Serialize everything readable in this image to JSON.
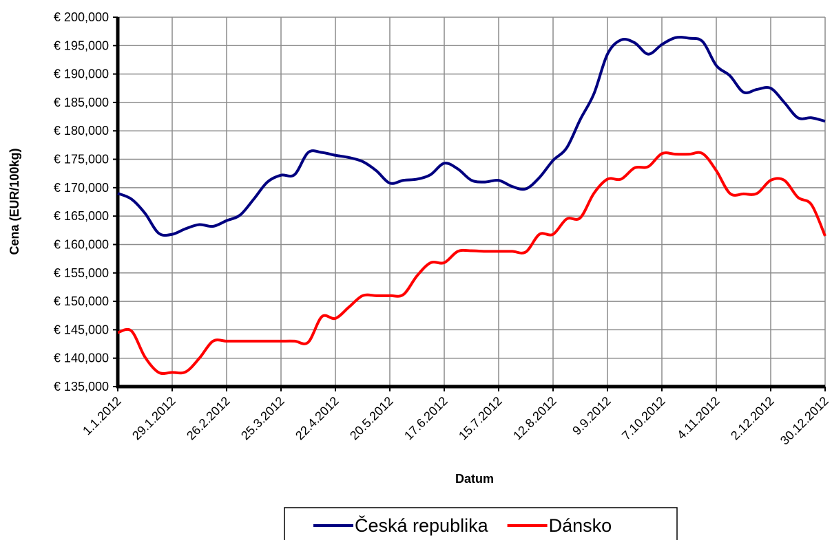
{
  "chart_data": {
    "type": "line",
    "xlabel": "Datum",
    "ylabel": "Cena (EUR/100kg)",
    "categories": [
      "1.1.2012",
      null,
      null,
      null,
      "29.1.2012",
      null,
      null,
      null,
      "26.2.2012",
      null,
      null,
      null,
      "25.3.2012",
      null,
      null,
      null,
      "22.4.2012",
      null,
      null,
      null,
      "20.5.2012",
      null,
      null,
      null,
      "17.6.2012",
      null,
      null,
      null,
      "15.7.2012",
      null,
      null,
      null,
      "12.8.2012",
      null,
      null,
      null,
      "9.9.2012",
      null,
      null,
      null,
      "7.10.2012",
      null,
      null,
      null,
      "4.11.2012",
      null,
      null,
      null,
      "2.12.2012",
      null,
      null,
      null,
      "30.12.2012"
    ],
    "series": [
      {
        "name": "Česká republika",
        "color": "#000080",
        "values": [
          169000,
          168000,
          165500,
          162000,
          161800,
          162800,
          163500,
          163200,
          164200,
          165200,
          168000,
          171000,
          172200,
          172300,
          176200,
          176200,
          175700,
          175300,
          174600,
          173000,
          170800,
          171300,
          171500,
          172300,
          174300,
          173300,
          171300,
          171000,
          171300,
          170200,
          169800,
          171800,
          174800,
          177000,
          182000,
          186500,
          193500,
          196000,
          195500,
          193500,
          195200,
          196400,
          196300,
          195700,
          191500,
          189700,
          186800,
          187300,
          187500,
          185000,
          182300,
          182300,
          181700
        ]
      },
      {
        "name": "Dánsko",
        "color": "#ff0000",
        "values": [
          144500,
          144800,
          140200,
          137500,
          137500,
          137600,
          140000,
          143000,
          143000,
          143000,
          143000,
          143000,
          143000,
          143000,
          142800,
          147300,
          147000,
          149000,
          151000,
          151000,
          151000,
          151200,
          154500,
          156800,
          156800,
          158800,
          158900,
          158800,
          158800,
          158800,
          158700,
          161800,
          161800,
          164500,
          164700,
          169000,
          171500,
          171500,
          173500,
          173700,
          176000,
          175900,
          175900,
          176000,
          173000,
          169000,
          168900,
          169000,
          171300,
          171300,
          168300,
          167000,
          161500
        ]
      }
    ],
    "ylim": [
      135000,
      200000
    ],
    "yticks": [
      {
        "value": 135000,
        "label": "€ 135,000"
      },
      {
        "value": 140000,
        "label": "€ 140,000"
      },
      {
        "value": 145000,
        "label": "€ 145,000"
      },
      {
        "value": 150000,
        "label": "€ 150,000"
      },
      {
        "value": 155000,
        "label": "€ 155,000"
      },
      {
        "value": 160000,
        "label": "€ 160,000"
      },
      {
        "value": 165000,
        "label": "€ 165,000"
      },
      {
        "value": 170000,
        "label": "€ 170,000"
      },
      {
        "value": 175000,
        "label": "€ 175,000"
      },
      {
        "value": 180000,
        "label": "€ 180,000"
      },
      {
        "value": 185000,
        "label": "€ 185,000"
      },
      {
        "value": 190000,
        "label": "€ 190,000"
      },
      {
        "value": 195000,
        "label": "€ 195,000"
      },
      {
        "value": 200000,
        "label": "€ 200,000"
      }
    ],
    "grid": true,
    "legend": "bottom"
  }
}
